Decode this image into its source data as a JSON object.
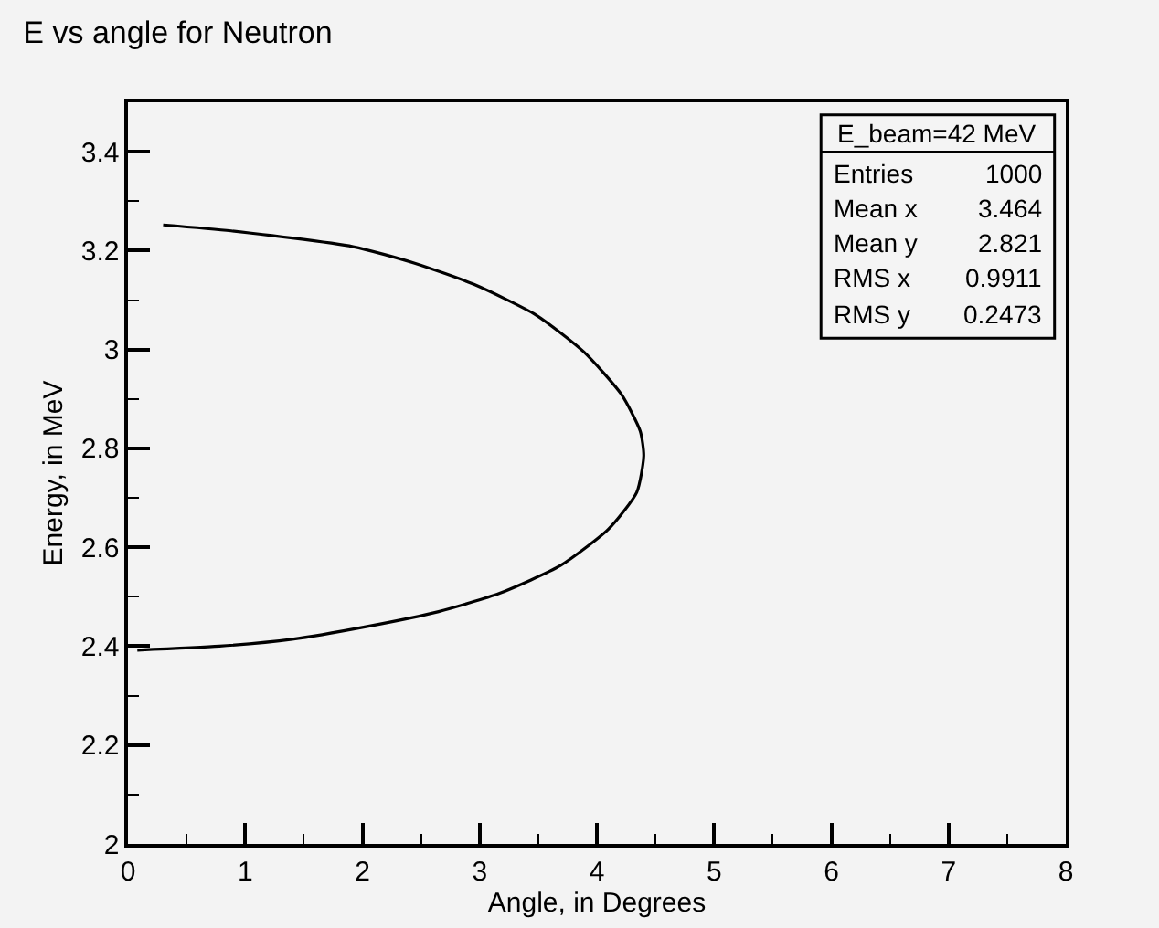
{
  "chart_data": {
    "type": "line",
    "title": "E vs angle for Neutron",
    "xlabel": "Angle, in Degrees",
    "ylabel": "Energy, in MeV",
    "x": [
      0.3,
      0.88,
      1.92,
      2.44,
      2.96,
      3.48,
      3.89,
      4.21,
      4.37,
      4.4,
      4.34,
      4.1,
      3.69,
      3.17,
      2.65,
      2.02,
      1.4,
      0.78,
      0.08
    ],
    "values": [
      3.252,
      3.24,
      3.208,
      3.175,
      3.131,
      3.07,
      2.995,
      2.909,
      2.835,
      2.785,
      2.711,
      2.637,
      2.563,
      2.507,
      2.47,
      2.439,
      2.414,
      2.4,
      2.392
    ],
    "color": "#000000",
    "marker": "none",
    "line_style": "solid",
    "xlim": [
      0,
      8
    ],
    "xticks": [
      0,
      1,
      2,
      3,
      4,
      5,
      6,
      7,
      8
    ],
    "ylim": [
      2,
      3.5
    ],
    "yticks": [
      2,
      2.2,
      2.4,
      2.6,
      2.8,
      3,
      3.2,
      3.4
    ],
    "grid": false,
    "legend": false,
    "annotations": [
      "E_beam=42 MeV",
      "Entries",
      "1000",
      "Mean x",
      "3.464",
      "Mean y",
      "2.821",
      "RMS x",
      "0.9911",
      "RMS y",
      "0.2473"
    ]
  }
}
